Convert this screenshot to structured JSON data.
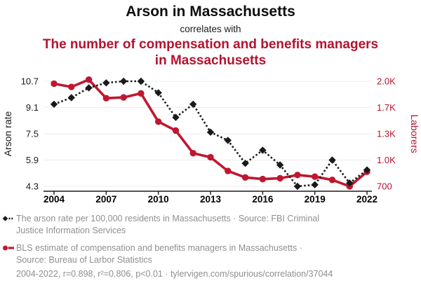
{
  "header": {
    "title": "Arson in Massachusetts",
    "connector": "correlates with",
    "subtitle": "The number of compensation and benefits managers in Massachusetts"
  },
  "colors": {
    "accent_red": "#b5122e",
    "line_red": "#c01731",
    "series_black": "#1a1a1a",
    "legend_gray": "#8f8f8f",
    "grid_gray": "#ececec",
    "axis_black": "#1a1a1a"
  },
  "chart_data": {
    "type": "line",
    "title": "Arson in Massachusetts correlates with The number of compensation and benefits managers in Massachusetts",
    "x": [
      2004,
      2005,
      2006,
      2007,
      2008,
      2009,
      2010,
      2011,
      2012,
      2013,
      2014,
      2015,
      2016,
      2017,
      2018,
      2019,
      2020,
      2021,
      2022
    ],
    "x_tick_labels": [
      "2004",
      "2007",
      "2010",
      "2013",
      "2016",
      "2019",
      "2022"
    ],
    "series": [
      {
        "name": "The arson rate per 100,000 residents in Massachusetts",
        "short_name": "Arson rate",
        "axis": "left",
        "color": "#1a1a1a",
        "marker": "diamond",
        "line_style": "dotted",
        "values": [
          9.3,
          9.7,
          10.3,
          10.6,
          10.7,
          10.7,
          10.0,
          8.5,
          9.3,
          7.6,
          7.1,
          5.7,
          6.5,
          5.6,
          4.3,
          4.4,
          5.9,
          4.5,
          5.3
        ]
      },
      {
        "name": "BLS estimate of compensation and benefits managers in Massachusetts",
        "short_name": "Laborers",
        "axis": "right",
        "color": "#c01731",
        "marker": "circle",
        "line_style": "solid",
        "values": [
          1970,
          1930,
          2020,
          1790,
          1800,
          1850,
          1500,
          1390,
          1110,
          1060,
          890,
          810,
          790,
          800,
          840,
          820,
          780,
          700,
          880
        ]
      }
    ],
    "left_axis": {
      "label": "Arson rate",
      "min": 4.3,
      "max": 10.7,
      "tick_labels": [
        "10.7",
        "9.1",
        "7.5",
        "5.9",
        "4.3"
      ]
    },
    "right_axis": {
      "label": "Laborers",
      "min": 700,
      "max": 2000,
      "tick_labels": [
        "2.0K",
        "1.7K",
        "1.3K",
        "1.0K",
        "700"
      ]
    },
    "grid": "horizontal",
    "legend_position": "bottom"
  },
  "legend": {
    "entries": [
      {
        "id": "arson",
        "marker": "black-diamond-dotted",
        "lines": [
          "The arson rate per 100,000 residents in Massachusetts · Source: FBI Criminal",
          "Justice Information Services"
        ]
      },
      {
        "id": "laborers",
        "marker": "red-circle-solid",
        "lines": [
          "BLS estimate of compensation and benefits managers in Massachusetts ·",
          "Source: Bureau of Larbor Statistics"
        ]
      }
    ],
    "footnote": "2004-2022, r=0.898, r²=0.806, p<0.01 · tylervigen.com/spurious/correlation/37044"
  }
}
